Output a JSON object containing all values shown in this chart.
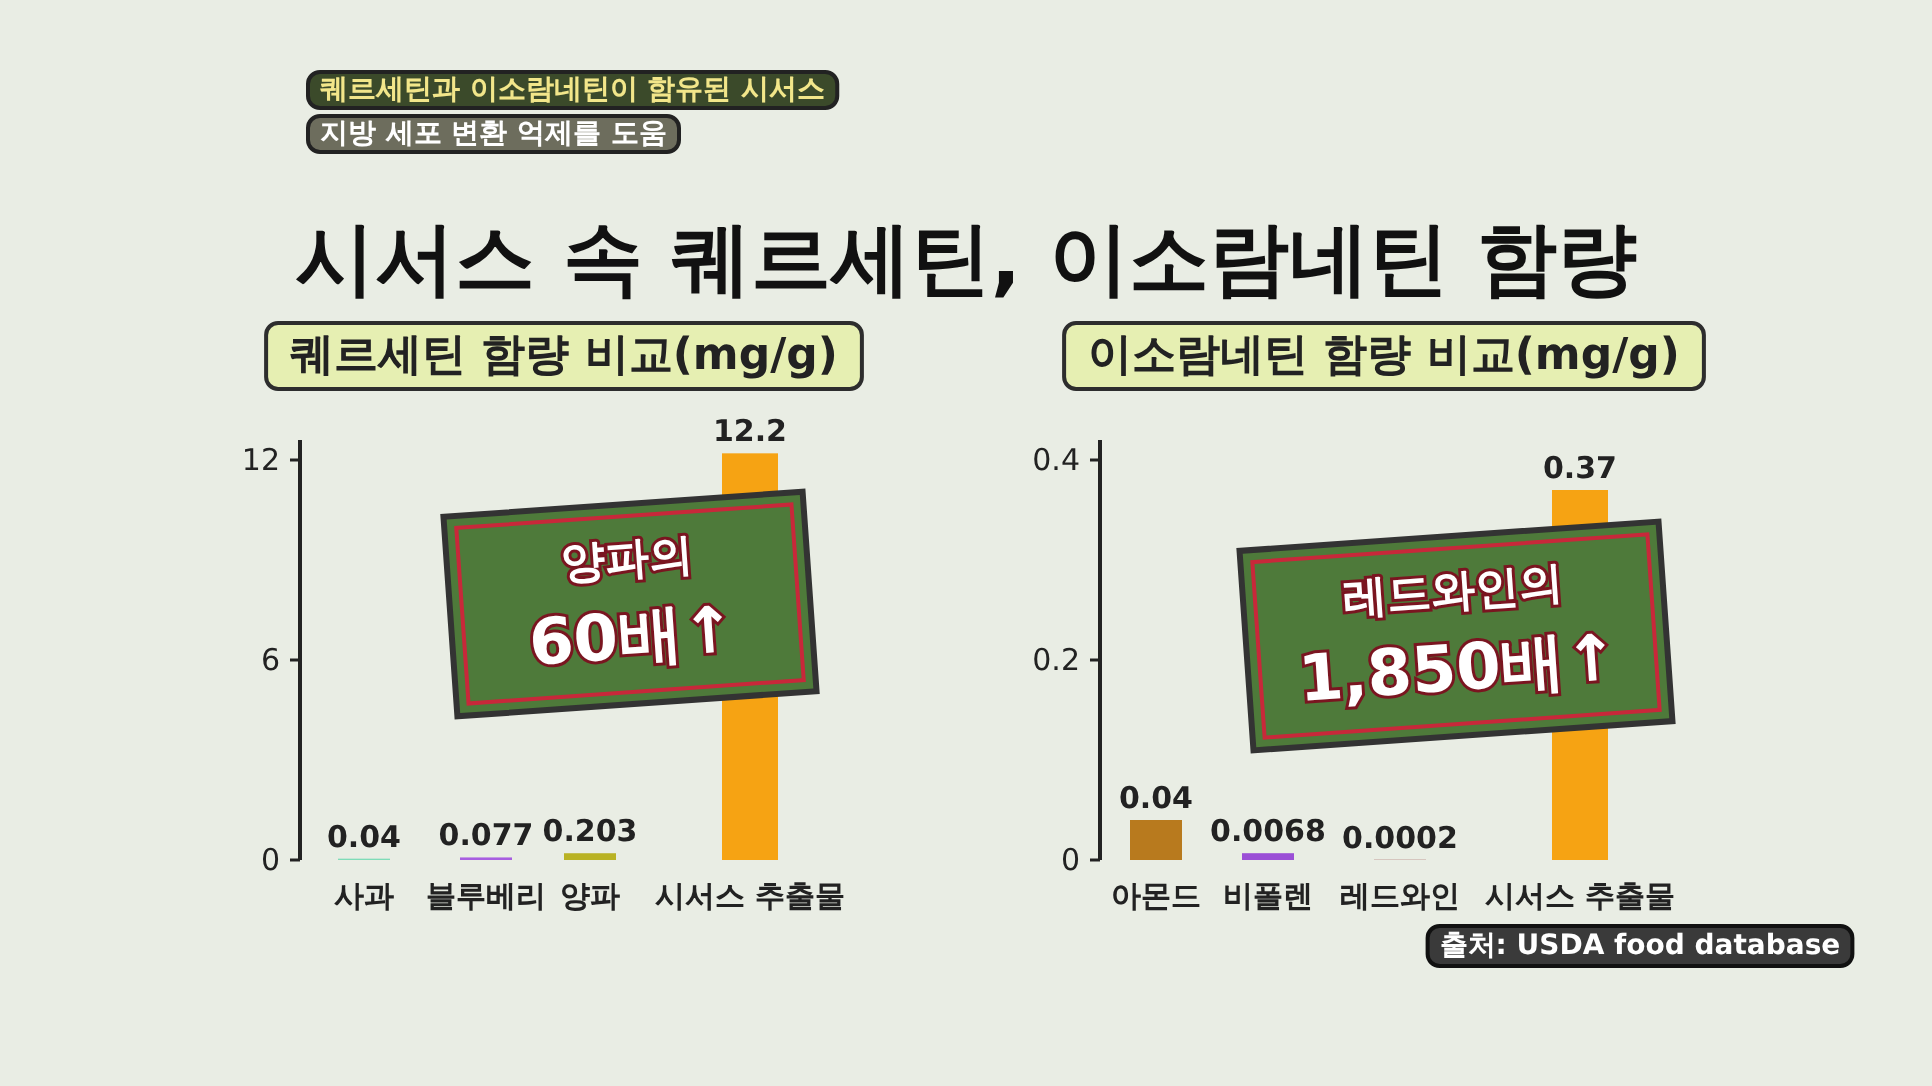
{
  "chart_data": [
    {
      "type": "other",
      "title": "시서스 속 퀘르세틴, 이소람네틴 함량",
      "annotations": [
        "퀘르세틴과 이소람네틴이 함유된 시서스",
        "지방 세포 변환 억제를 도움"
      ]
    },
    {
      "type": "bar",
      "title": "퀘르세틴 함량 비교(mg/g)",
      "categories": [
        "사과",
        "블루베리",
        "양파",
        "시서스 추출물"
      ],
      "values": [
        0.04,
        0.077,
        0.203,
        12.2
      ],
      "colors": [
        "#7fdcb8",
        "#a75ee0",
        "#b9b224",
        "#f6a313"
      ],
      "ylim": [
        0,
        12.6
      ],
      "yticks": [
        0,
        6,
        12
      ],
      "data_labels": true,
      "grid": false,
      "annotations": [
        "양파의 60배↑"
      ]
    },
    {
      "type": "bar",
      "title": "이소람네틴 함량 비교(mg/g)",
      "categories": [
        "아몬드",
        "비폴렌",
        "레드와인",
        "시서스 추출물"
      ],
      "values": [
        0.04,
        0.0068,
        0.0002,
        0.37
      ],
      "colors": [
        "#b87a1e",
        "#9b4fd6",
        "#8a2a2a",
        "#f6a313"
      ],
      "ylim": [
        0,
        0.42
      ],
      "yticks": [
        0,
        0.2,
        0.4
      ],
      "data_labels": true,
      "grid": false,
      "annotations": [
        "레드와인의 1,850배↑",
        "출처: USDA food database"
      ]
    }
  ]
}
